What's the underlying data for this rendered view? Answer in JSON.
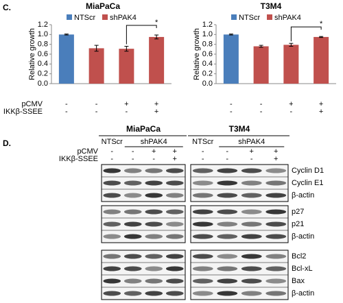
{
  "panel_c_label": "C.",
  "chart_data": [
    {
      "type": "bar",
      "title": "MiaPaCa",
      "y_label": "Relative growth",
      "values": [
        1.0,
        0.72,
        0.71,
        0.95
      ],
      "errors": [
        0.01,
        0.06,
        0.05,
        0.04
      ],
      "bar_colors": [
        "#4a7ebb",
        "#c0504d",
        "#c0504d",
        "#c0504d"
      ],
      "legend": [
        {
          "name": "NTScr",
          "color": "#4a7ebb"
        },
        {
          "name": "shPAK4",
          "color": "#c0504d"
        }
      ],
      "ylim": [
        0,
        1.2
      ],
      "yticks": [
        {
          "value": 0,
          "label": "0.0"
        },
        {
          "value": 0.2,
          "label": "0.2"
        },
        {
          "value": 0.4,
          "label": "0.4"
        },
        {
          "value": 0.6,
          "label": "0.6"
        },
        {
          "value": 0.8,
          "label": "0.8"
        },
        {
          "value": 1.0,
          "label": "1.0"
        },
        {
          "value": 1.2,
          "label": "1.2"
        }
      ],
      "annotation": "*",
      "condition_labels": [
        "pCMV",
        "IKKβ-SSEE"
      ],
      "conditions": [
        [
          "-",
          "-",
          "+",
          "+"
        ],
        [
          "-",
          "-",
          "-",
          "+"
        ]
      ]
    },
    {
      "type": "bar",
      "title": "T3M4",
      "y_label": "Relative growth",
      "values": [
        1.0,
        0.76,
        0.79,
        0.95
      ],
      "errors": [
        0.01,
        0.02,
        0.03,
        0.01
      ],
      "bar_colors": [
        "#4a7ebb",
        "#c0504d",
        "#c0504d",
        "#c0504d"
      ],
      "legend": [
        {
          "name": "NTScr",
          "color": "#4a7ebb"
        },
        {
          "name": "shPAK4",
          "color": "#c0504d"
        }
      ],
      "ylim": [
        0,
        1.2
      ],
      "yticks": [
        {
          "value": 0,
          "label": "0.0"
        },
        {
          "value": 0.2,
          "label": "0.2"
        },
        {
          "value": 0.4,
          "label": "0.4"
        },
        {
          "value": 0.6,
          "label": "0.6"
        },
        {
          "value": 0.8,
          "label": "0.8"
        },
        {
          "value": 1.0,
          "label": "1.0"
        },
        {
          "value": 1.2,
          "label": "1.2"
        }
      ],
      "annotation": "*",
      "conditions": [
        [
          "-",
          "-",
          "+",
          "+"
        ],
        [
          "-",
          "-",
          "-",
          "+"
        ]
      ]
    }
  ],
  "blot": {
    "panel_label": "D.",
    "cell_lines": [
      "MiaPaCa",
      "T3M4"
    ],
    "groups": [
      "NTScr",
      "shPAK4"
    ],
    "treatment_labels": [
      "pCMV",
      "IKKβ-SSEE"
    ],
    "treatments": [
      [
        "-",
        "-",
        "+",
        "+"
      ],
      [
        "-",
        "-",
        "-",
        "+"
      ]
    ],
    "proteins": [
      [
        "Cyclin D1",
        "Cyclin E1",
        "β-actin"
      ],
      [
        "p27",
        "p21",
        "β-actin"
      ],
      [
        "Bcl2",
        "Bcl-xL",
        "Bax",
        "β-actin"
      ]
    ]
  }
}
